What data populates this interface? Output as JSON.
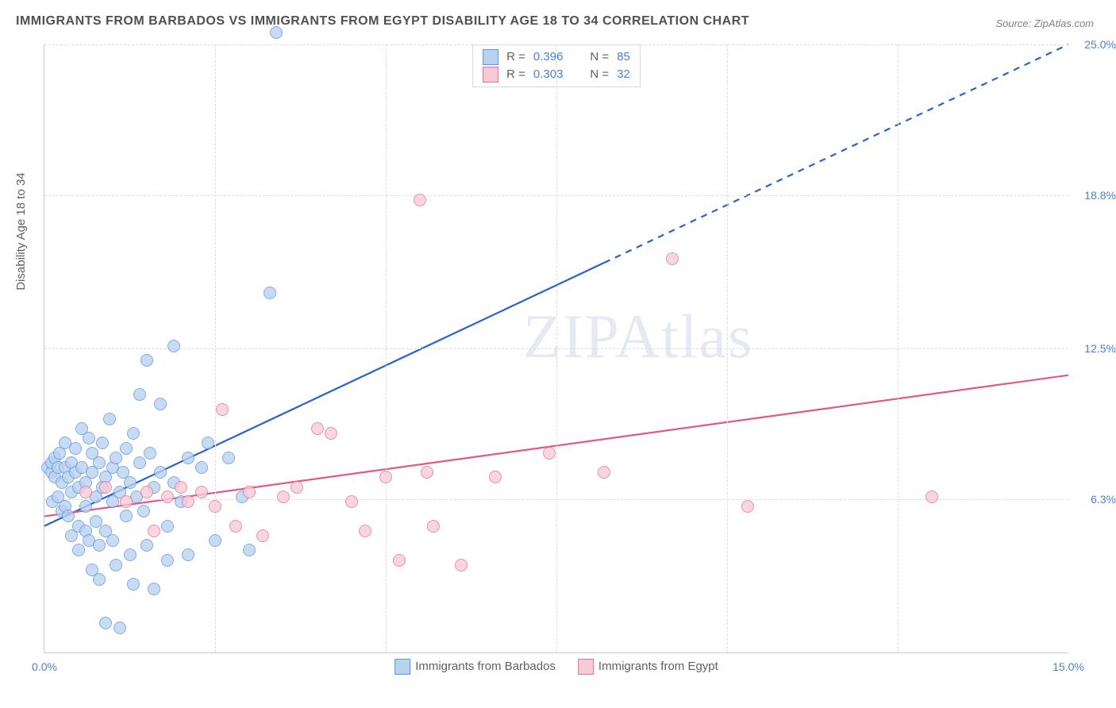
{
  "title": "IMMIGRANTS FROM BARBADOS VS IMMIGRANTS FROM EGYPT DISABILITY AGE 18 TO 34 CORRELATION CHART",
  "source": "Source: ZipAtlas.com",
  "ylabel": "Disability Age 18 to 34",
  "watermark": "ZIPAtlas",
  "chart": {
    "type": "scatter",
    "xlim": [
      0,
      15
    ],
    "ylim": [
      0,
      25
    ],
    "x_ticks": [
      {
        "v": 0,
        "label": "0.0%"
      },
      {
        "v": 15,
        "label": "15.0%"
      }
    ],
    "y_ticks": [
      {
        "v": 6.3,
        "label": "6.3%"
      },
      {
        "v": 12.5,
        "label": "12.5%"
      },
      {
        "v": 18.8,
        "label": "18.8%"
      },
      {
        "v": 25.0,
        "label": "25.0%"
      }
    ],
    "x_grid": [
      2.5,
      5.0,
      7.5,
      10.0,
      12.5
    ],
    "background_color": "#ffffff",
    "grid_color": "#dcdcdc",
    "axis_color": "#c8c8c8",
    "tick_label_color": "#4a7fd8",
    "marker_radius": 8,
    "marker_stroke_width": 1.5,
    "line_width": 2.2,
    "series": [
      {
        "name": "Immigrants from Barbados",
        "fill_color": "#b9d2f0",
        "stroke_color": "#5c95e0",
        "line_color": "#2b62c9",
        "R": "0.396",
        "N": "85",
        "trend": {
          "x0": 0,
          "y0": 5.2,
          "x1": 8.2,
          "y1": 16.0,
          "x2": 15,
          "y2": 25.0,
          "solid_until_x": 8.2
        },
        "points": [
          [
            0.05,
            7.6
          ],
          [
            0.1,
            7.4
          ],
          [
            0.1,
            7.8
          ],
          [
            0.12,
            6.2
          ],
          [
            0.15,
            7.2
          ],
          [
            0.15,
            8.0
          ],
          [
            0.2,
            7.6
          ],
          [
            0.2,
            6.4
          ],
          [
            0.22,
            8.2
          ],
          [
            0.25,
            7.0
          ],
          [
            0.25,
            5.8
          ],
          [
            0.3,
            7.6
          ],
          [
            0.3,
            8.6
          ],
          [
            0.3,
            6.0
          ],
          [
            0.35,
            7.2
          ],
          [
            0.35,
            5.6
          ],
          [
            0.4,
            7.8
          ],
          [
            0.4,
            6.6
          ],
          [
            0.4,
            4.8
          ],
          [
            0.45,
            7.4
          ],
          [
            0.45,
            8.4
          ],
          [
            0.5,
            6.8
          ],
          [
            0.5,
            5.2
          ],
          [
            0.5,
            4.2
          ],
          [
            0.55,
            7.6
          ],
          [
            0.55,
            9.2
          ],
          [
            0.6,
            7.0
          ],
          [
            0.6,
            6.0
          ],
          [
            0.6,
            5.0
          ],
          [
            0.65,
            8.8
          ],
          [
            0.65,
            4.6
          ],
          [
            0.7,
            7.4
          ],
          [
            0.7,
            8.2
          ],
          [
            0.7,
            3.4
          ],
          [
            0.75,
            6.4
          ],
          [
            0.75,
            5.4
          ],
          [
            0.8,
            7.8
          ],
          [
            0.8,
            4.4
          ],
          [
            0.8,
            3.0
          ],
          [
            0.85,
            8.6
          ],
          [
            0.85,
            6.8
          ],
          [
            0.9,
            7.2
          ],
          [
            0.9,
            5.0
          ],
          [
            0.9,
            1.2
          ],
          [
            0.95,
            9.6
          ],
          [
            1.0,
            7.6
          ],
          [
            1.0,
            6.2
          ],
          [
            1.0,
            4.6
          ],
          [
            1.05,
            8.0
          ],
          [
            1.05,
            3.6
          ],
          [
            1.1,
            6.6
          ],
          [
            1.1,
            1.0
          ],
          [
            1.15,
            7.4
          ],
          [
            1.2,
            5.6
          ],
          [
            1.2,
            8.4
          ],
          [
            1.25,
            4.0
          ],
          [
            1.25,
            7.0
          ],
          [
            1.3,
            9.0
          ],
          [
            1.3,
            2.8
          ],
          [
            1.35,
            6.4
          ],
          [
            1.4,
            10.6
          ],
          [
            1.4,
            7.8
          ],
          [
            1.45,
            5.8
          ],
          [
            1.5,
            12.0
          ],
          [
            1.5,
            4.4
          ],
          [
            1.55,
            8.2
          ],
          [
            1.6,
            2.6
          ],
          [
            1.6,
            6.8
          ],
          [
            1.7,
            7.4
          ],
          [
            1.7,
            10.2
          ],
          [
            1.8,
            5.2
          ],
          [
            1.8,
            3.8
          ],
          [
            1.9,
            7.0
          ],
          [
            1.9,
            12.6
          ],
          [
            2.0,
            6.2
          ],
          [
            2.1,
            8.0
          ],
          [
            2.1,
            4.0
          ],
          [
            2.3,
            7.6
          ],
          [
            2.4,
            8.6
          ],
          [
            2.5,
            4.6
          ],
          [
            2.7,
            8.0
          ],
          [
            2.9,
            6.4
          ],
          [
            3.0,
            4.2
          ],
          [
            3.3,
            14.8
          ],
          [
            3.4,
            25.5
          ]
        ]
      },
      {
        "name": "Immigrants from Egypt",
        "fill_color": "#f6cbd7",
        "stroke_color": "#e8708f",
        "line_color": "#e05a85",
        "R": "0.303",
        "N": "32",
        "trend": {
          "x0": 0,
          "y0": 5.6,
          "x1": 15,
          "y1": 11.4,
          "solid_until_x": 15
        },
        "points": [
          [
            0.6,
            6.6
          ],
          [
            0.9,
            6.8
          ],
          [
            1.2,
            6.2
          ],
          [
            1.5,
            6.6
          ],
          [
            1.6,
            5.0
          ],
          [
            1.8,
            6.4
          ],
          [
            2.0,
            6.8
          ],
          [
            2.1,
            6.2
          ],
          [
            2.3,
            6.6
          ],
          [
            2.5,
            6.0
          ],
          [
            2.6,
            10.0
          ],
          [
            2.8,
            5.2
          ],
          [
            3.0,
            6.6
          ],
          [
            3.2,
            4.8
          ],
          [
            3.5,
            6.4
          ],
          [
            3.7,
            6.8
          ],
          [
            4.0,
            9.2
          ],
          [
            4.2,
            9.0
          ],
          [
            4.5,
            6.2
          ],
          [
            4.7,
            5.0
          ],
          [
            5.0,
            7.2
          ],
          [
            5.2,
            3.8
          ],
          [
            5.5,
            18.6
          ],
          [
            5.6,
            7.4
          ],
          [
            5.7,
            5.2
          ],
          [
            6.1,
            3.6
          ],
          [
            6.6,
            7.2
          ],
          [
            7.4,
            8.2
          ],
          [
            8.2,
            7.4
          ],
          [
            9.2,
            16.2
          ],
          [
            10.3,
            6.0
          ],
          [
            13.0,
            6.4
          ]
        ]
      }
    ]
  },
  "legend_top": [
    {
      "sw_fill": "#b9d2f0",
      "sw_stroke": "#5c95e0",
      "r_label": "R =",
      "r_val": "0.396",
      "n_label": "N =",
      "n_val": "85"
    },
    {
      "sw_fill": "#f6cbd7",
      "sw_stroke": "#e8708f",
      "r_label": "R =",
      "r_val": "0.303",
      "n_label": "N =",
      "n_val": "32"
    }
  ],
  "legend_bottom": [
    {
      "sw_fill": "#b9d2f0",
      "sw_stroke": "#5c95e0",
      "label": "Immigrants from Barbados"
    },
    {
      "sw_fill": "#f6cbd7",
      "sw_stroke": "#e8708f",
      "label": "Immigrants from Egypt"
    }
  ]
}
